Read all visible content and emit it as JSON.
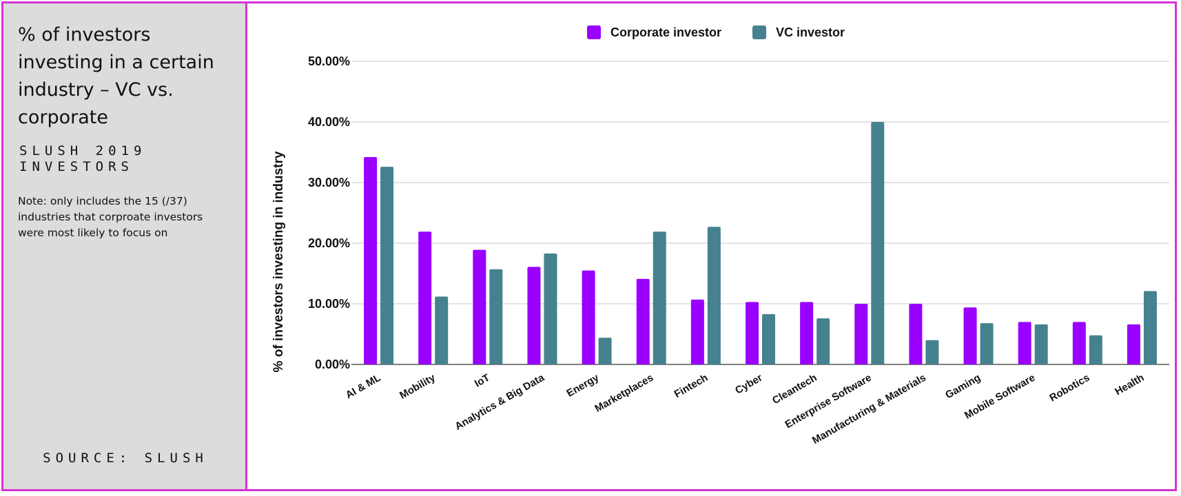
{
  "sidebar": {
    "title": "% of investors investing in a certain industry – VC vs. corporate",
    "subtitle": "SLUSH 2019 INVESTORS",
    "note": "Note: only includes the 15 (/37) industries that corproate investors were most likely to focus on",
    "source": "SOURCE: SLUSH"
  },
  "colors": {
    "border": "#d633d6",
    "sidebar_bg": "#dcdcdc",
    "corporate": "#9900ff",
    "vc": "#45818e"
  },
  "chart_data": {
    "type": "bar",
    "ylabel": "% of investors investing in industry",
    "xlabel": "",
    "ylim": [
      0,
      50
    ],
    "yticks": [
      "0.00%",
      "10.00%",
      "20.00%",
      "30.00%",
      "40.00%",
      "50.00%"
    ],
    "grid": true,
    "legend_position": "top",
    "categories": [
      "AI & ML",
      "Mobility",
      "IoT",
      "Analytics & Big Data",
      "Energy",
      "Marketplaces",
      "Fintech",
      "Cyber",
      "Cleantech",
      "Enterprise Software",
      "Manufacturing & Materials",
      "Gaming",
      "Mobile Software",
      "Robotics",
      "Health"
    ],
    "series": [
      {
        "name": "Corporate investor",
        "color": "#9900ff",
        "values": [
          34.2,
          21.9,
          18.9,
          16.1,
          15.5,
          14.1,
          10.7,
          10.3,
          10.3,
          10.0,
          10.0,
          9.4,
          7.0,
          7.0,
          6.6
        ]
      },
      {
        "name": "VC investor",
        "color": "#45818e",
        "values": [
          32.6,
          11.2,
          15.7,
          18.3,
          4.4,
          21.9,
          22.7,
          8.3,
          7.6,
          40.0,
          4.0,
          6.8,
          6.6,
          4.8,
          12.1
        ]
      }
    ]
  }
}
